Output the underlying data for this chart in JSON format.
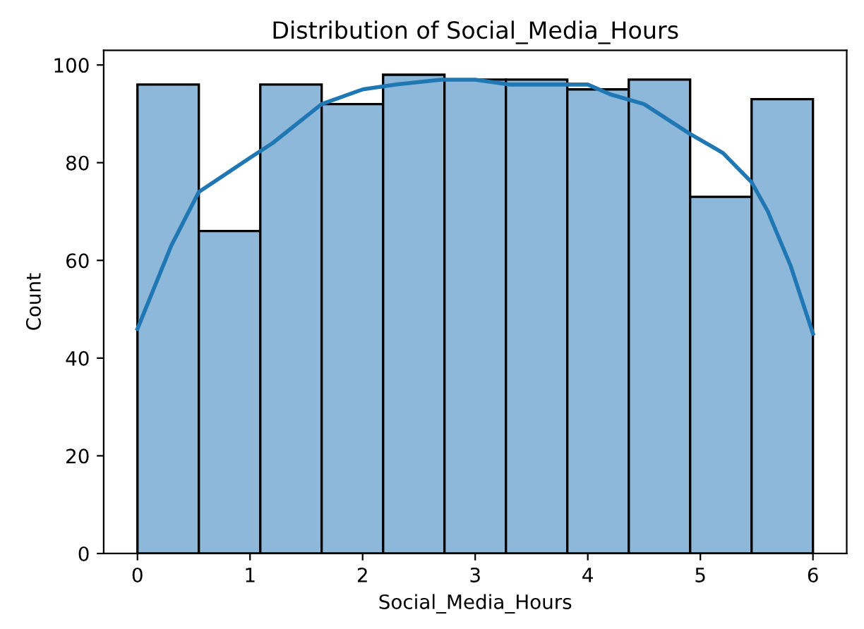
{
  "chart_data": {
    "type": "histogram",
    "title": "Distribution of Social_Media_Hours",
    "xlabel": "Social_Media_Hours",
    "ylabel": "Count",
    "bins": [
      0,
      0.545,
      1.091,
      1.636,
      2.182,
      2.727,
      3.273,
      3.818,
      4.364,
      4.909,
      5.455,
      6
    ],
    "values": [
      96,
      66,
      96,
      92,
      98,
      97,
      97,
      95,
      97,
      73,
      93
    ],
    "color": "#8db8da",
    "series": [
      {
        "type": "line",
        "color": "#1f77b4",
        "x": [
          0,
          0.3,
          0.545,
          1,
          1.2,
          1.636,
          2,
          2.3,
          2.7,
          3,
          3.3,
          3.6,
          3.8,
          4,
          4.2,
          4.5,
          4.9,
          5.2,
          5.455,
          5.6,
          5.8,
          6
        ],
        "values": [
          46,
          63,
          74,
          81,
          84,
          92,
          95,
          96,
          97,
          97,
          96,
          96,
          96,
          96,
          94,
          92,
          86,
          82,
          76,
          70,
          59,
          45
        ]
      }
    ],
    "xlim": [
      -0.3,
      6.3
    ],
    "ylim": [
      0,
      103
    ],
    "xticks": [
      0,
      1,
      2,
      3,
      4,
      5,
      6
    ],
    "yticks": [
      0,
      20,
      40,
      60,
      80,
      100
    ],
    "grid": false,
    "legend": false
  }
}
